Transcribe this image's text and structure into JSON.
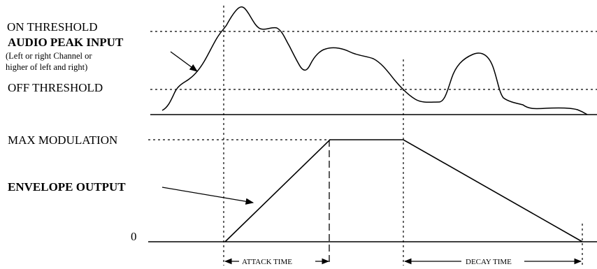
{
  "labels": {
    "on_threshold": "ON THRESHOLD",
    "audio_peak_input": "AUDIO PEAK INPUT",
    "note_line1": "(Left or right Channel or",
    "note_line2": "higher of left and right)",
    "off_threshold": "OFF THRESHOLD",
    "max_modulation": "MAX MODULATION",
    "envelope_output": "ENVELOPE OUTPUT",
    "zero": "0",
    "attack_time": "ATTACK TIME",
    "decay_time": "DECAY TIME"
  },
  "colors": {
    "ink": "#000000",
    "background": "#ffffff"
  }
}
